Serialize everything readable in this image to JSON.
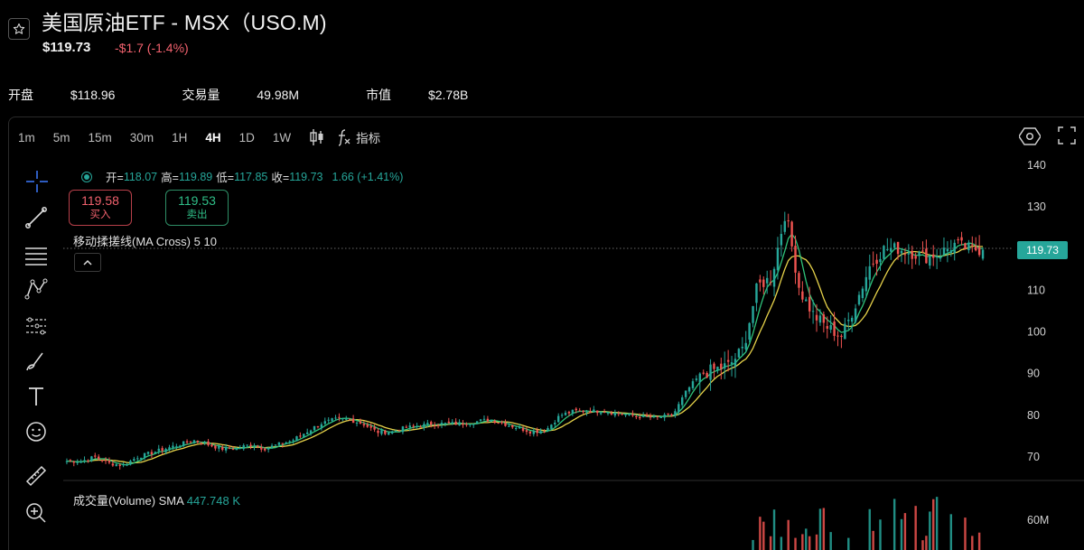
{
  "header": {
    "title": "美国原油ETF - MSX（USO.M)",
    "price": "$119.73",
    "change": "-$1.7 (-1.4%)"
  },
  "stats": [
    {
      "label": "开盘",
      "value": "$118.96"
    },
    {
      "label": "交易量",
      "value": "49.98M"
    },
    {
      "label": "市值",
      "value": "$2.78B"
    }
  ],
  "toolbar": {
    "timeframes": [
      "1m",
      "5m",
      "15m",
      "30m",
      "1H",
      "4H",
      "1D",
      "1W"
    ],
    "active_timeframe": "4H",
    "indicators_label": "指标"
  },
  "sidebar_icons": [
    "crosshair-icon",
    "trend-line-icon",
    "horizontal-lines-icon",
    "pattern-icon",
    "measure-lines-icon",
    "brush-icon",
    "text-icon",
    "emoji-icon",
    "ruler-icon",
    "zoom-in-icon"
  ],
  "legend": {
    "open_label": "开=",
    "open": "118.07",
    "high_label": "高=",
    "high": "119.89",
    "low_label": "低=",
    "low": "117.85",
    "close_label": "收=",
    "close": "119.73",
    "change": "1.66 (+1.41%)"
  },
  "trade": {
    "buy_price": "119.58",
    "buy_label": "买入",
    "sell_price": "119.53",
    "sell_label": "卖出"
  },
  "ma_indicator": {
    "label": "移动揉搓线(MA Cross)",
    "params": "5 10"
  },
  "volume_indicator": {
    "label": "成交量(Volume) SMA",
    "value": "447.748 K"
  },
  "last_price_tag": "119.73",
  "colors": {
    "up": "#26a69a",
    "down": "#ef5350",
    "ma_fast": "#2fc47a",
    "ma_slow": "#e6d24a",
    "background": "#000000"
  },
  "chart_data": {
    "type": "candlestick",
    "price_axis_ticks": [
      "140",
      "130",
      "120",
      "110",
      "100",
      "90",
      "80",
      "70"
    ],
    "volume_axis_ticks": [
      "60M"
    ],
    "ylim": [
      66,
      142
    ],
    "last_close": 119.73,
    "close_path": [
      69,
      69,
      70,
      68.5,
      68,
      70,
      71,
      72,
      73,
      74,
      73,
      72,
      72,
      73,
      72,
      73,
      74,
      76,
      78,
      79,
      79,
      78,
      76,
      76,
      77,
      77.5,
      78,
      78,
      78,
      78.5,
      79,
      78,
      77,
      76,
      76.5,
      80,
      81,
      81,
      81,
      80.5,
      80,
      79.5,
      79.5,
      80,
      86,
      90,
      91,
      92,
      96,
      111,
      113,
      129,
      110,
      104,
      101,
      99,
      107,
      116,
      120,
      120,
      119,
      118,
      119,
      121,
      120,
      119.73
    ],
    "volume_peaks_in_view": [
      "~60M+ spikes during rally"
    ]
  }
}
